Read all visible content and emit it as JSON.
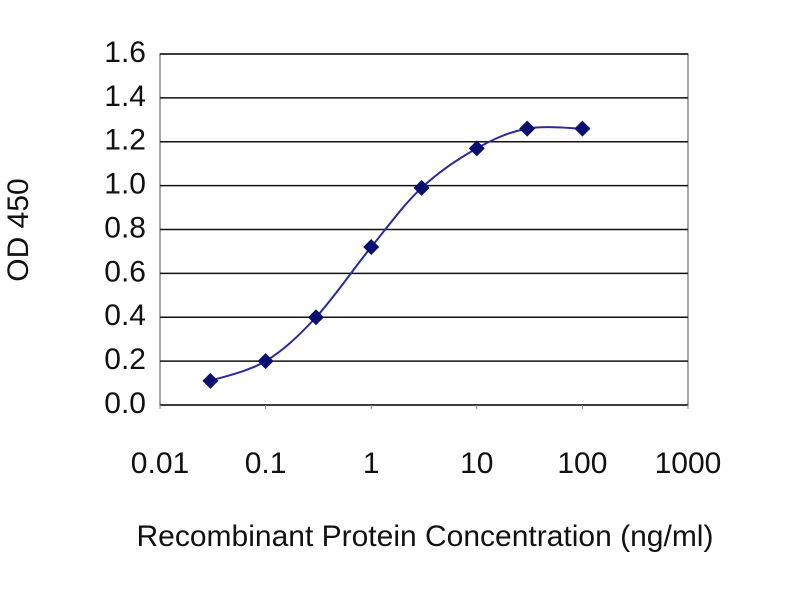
{
  "chart_data": {
    "type": "line",
    "x_label": "Recombinant Protein Concentration (ng/ml)",
    "y_label": "OD 450",
    "x": [
      0.03,
      0.1,
      0.3,
      1,
      3,
      10,
      30,
      100
    ],
    "values": [
      0.11,
      0.2,
      0.4,
      0.72,
      0.99,
      1.17,
      1.26,
      1.26
    ],
    "color": "#2b2b9e",
    "marker_color": "#0a1070",
    "xscale": "log",
    "xlim": [
      0.01,
      1000
    ],
    "xticks": [
      0.01,
      0.1,
      1,
      10,
      100,
      1000
    ],
    "ylim": [
      0,
      1.6
    ],
    "yticks": [
      {
        "value": 0,
        "label": "0.0"
      },
      0.2,
      0.4,
      0.6,
      0.8,
      {
        "value": 1,
        "label": "1.0"
      },
      1.2,
      1.4,
      1.6
    ],
    "grid": true
  }
}
